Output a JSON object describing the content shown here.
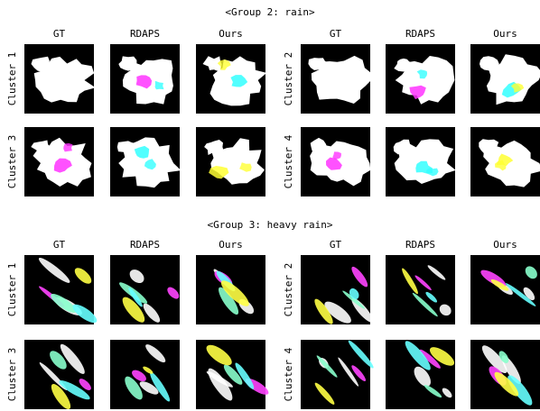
{
  "groups": [
    {
      "title": "<Group 2: rain>",
      "columns": [
        "GT",
        "RDAPS",
        "Ours",
        "GT",
        "RDAPS",
        "Ours"
      ],
      "rows": [
        [
          "Cluster 1",
          "Cluster 2"
        ],
        [
          "Cluster 3",
          "Cluster 4"
        ]
      ]
    },
    {
      "title": "<Group 3: heavy rain>",
      "columns": [
        "GT",
        "RDAPS",
        "Ours",
        "GT",
        "RDAPS",
        "Ours"
      ],
      "rows": [
        [
          "Cluster 1",
          "Cluster 2"
        ],
        [
          "Cluster 3",
          "Cluster 4"
        ]
      ]
    }
  ]
}
